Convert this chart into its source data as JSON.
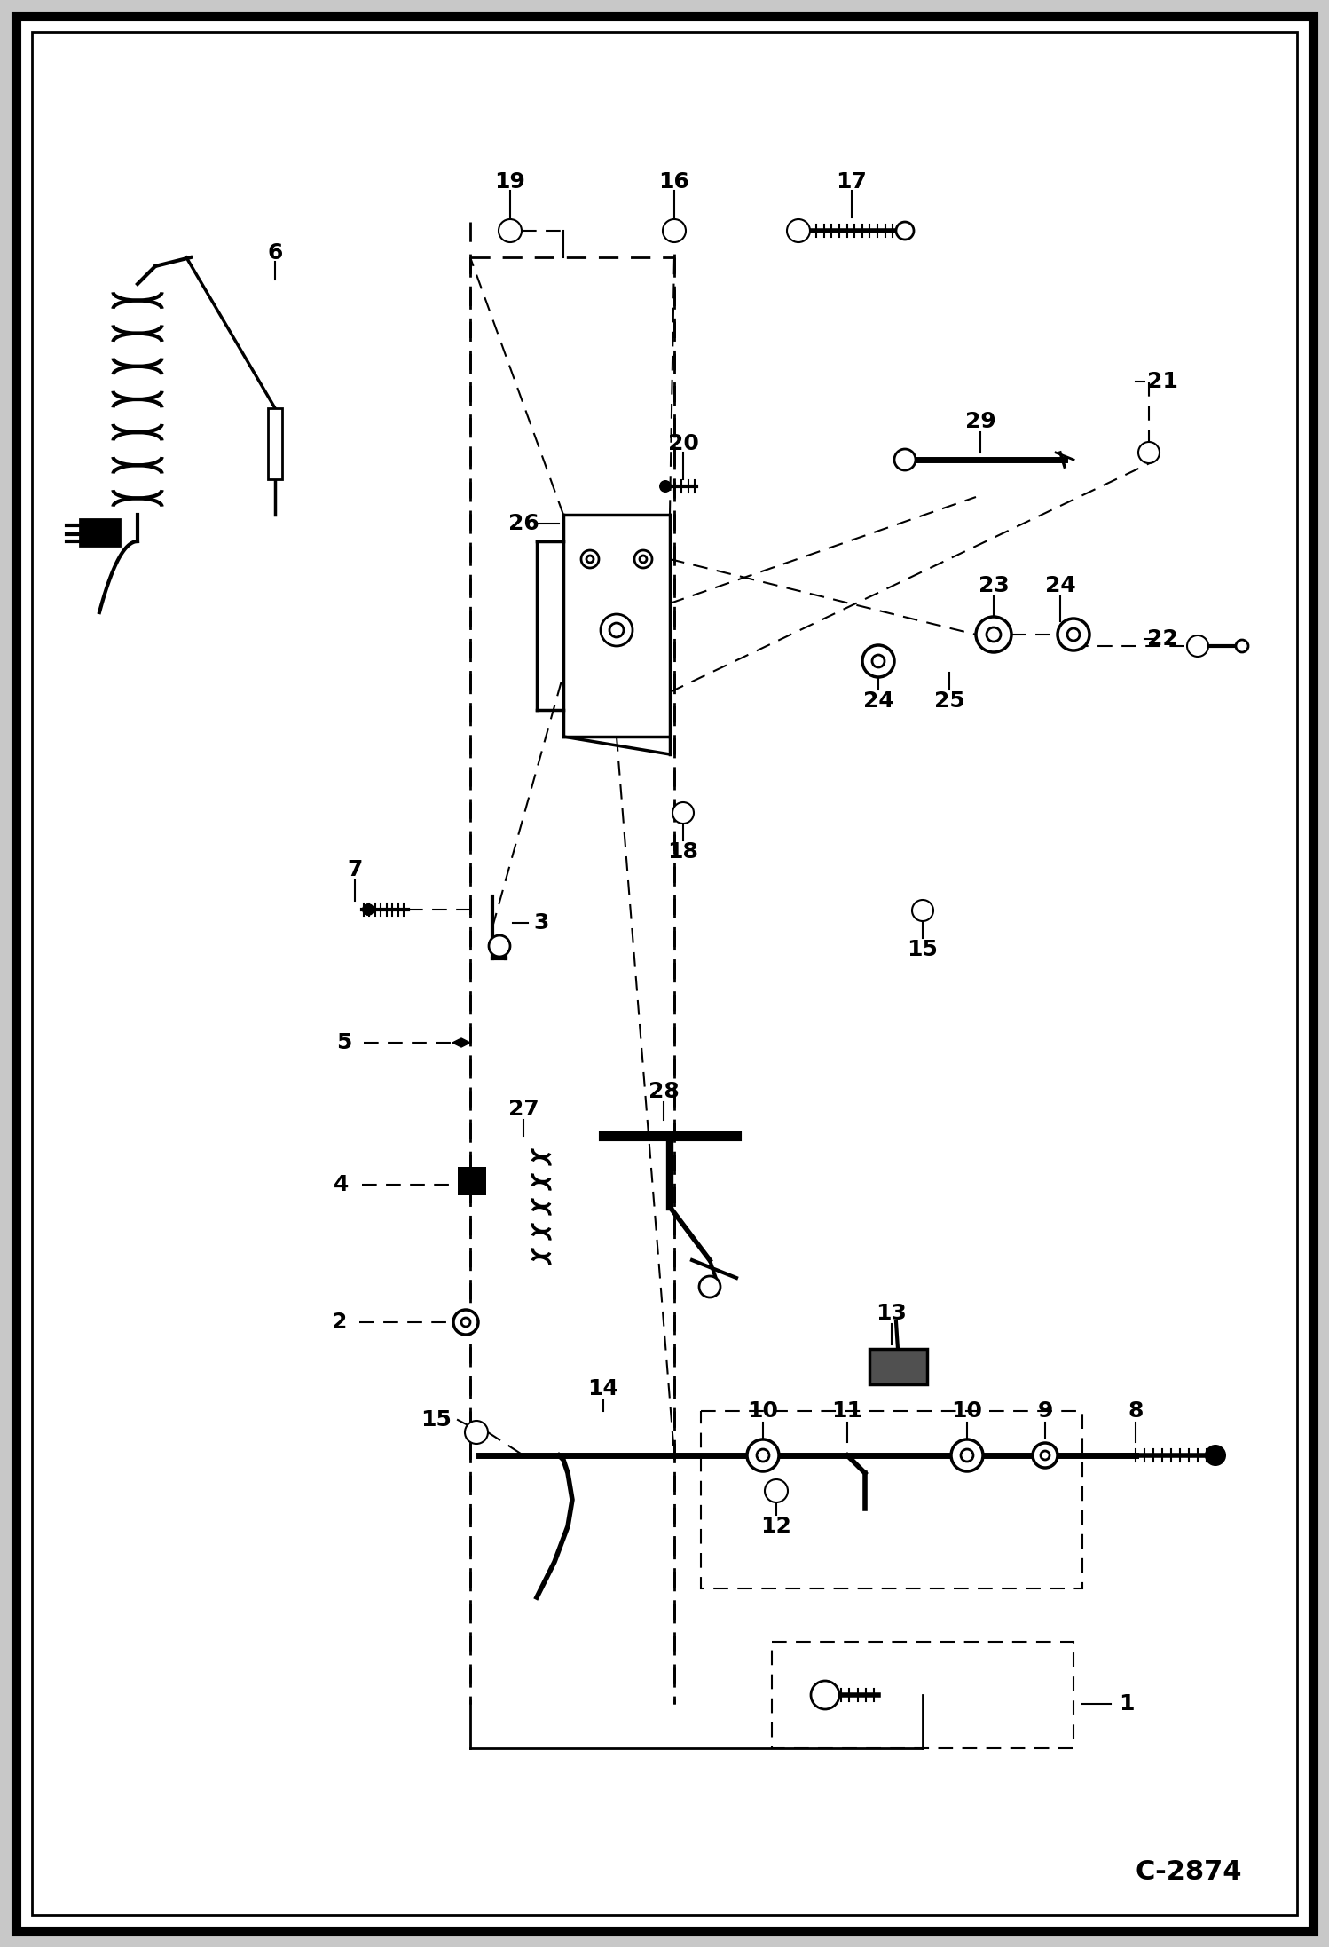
{
  "page_code": "C-2874",
  "fig_width": 14.98,
  "fig_height": 21.94,
  "dpi": 100,
  "border_outer_lw": 8,
  "border_inner_lw": 2
}
